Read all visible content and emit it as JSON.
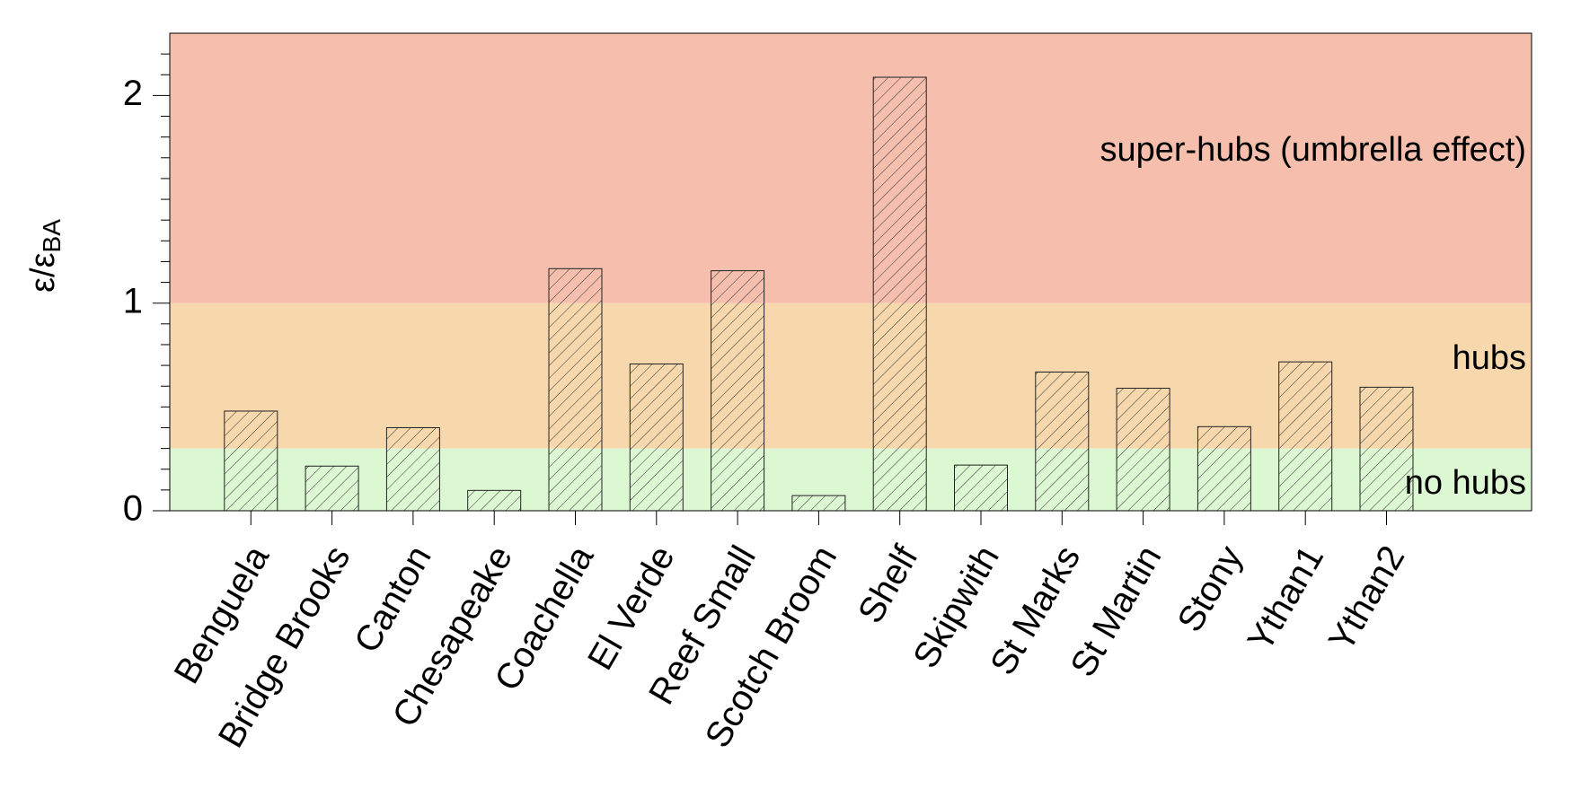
{
  "chart_data": {
    "type": "bar",
    "y_label": {
      "text": "ε/ε",
      "subscript": "BA"
    },
    "categories": [
      "Benguela",
      "Bridge Brooks",
      "Canton",
      "Chesapeake",
      "Coachella",
      "El Verde",
      "Reef Small",
      "Scotch Broom",
      "Shelf",
      "Skipwith",
      "St Marks",
      "St Martin",
      "Stony",
      "Ythan1",
      "Ythan2"
    ],
    "values": [
      0.48,
      0.215,
      0.4,
      0.098,
      1.166,
      0.707,
      1.156,
      0.073,
      2.088,
      0.22,
      0.668,
      0.59,
      0.405,
      0.717,
      0.595
    ],
    "ylim": [
      0,
      2.3
    ],
    "yticks": [
      0,
      1,
      2
    ],
    "yminorticks": [
      0.1,
      0.2,
      0.3,
      0.4,
      0.5,
      0.6,
      0.7,
      0.8,
      0.9,
      1.1,
      1.2,
      1.3,
      1.4,
      1.5,
      1.6,
      1.7,
      1.8,
      1.9,
      2.1,
      2.2
    ],
    "regions": [
      {
        "label": "no hubs",
        "from": 0,
        "to": 0.3,
        "color": "#dcf8d2"
      },
      {
        "label": "hubs",
        "from": 0.3,
        "to": 1,
        "color": "#f7d8ad"
      },
      {
        "label": "super-hubs (umbrella effect)",
        "from": 1,
        "to": 2.3,
        "color": "#f6bfad"
      }
    ]
  }
}
